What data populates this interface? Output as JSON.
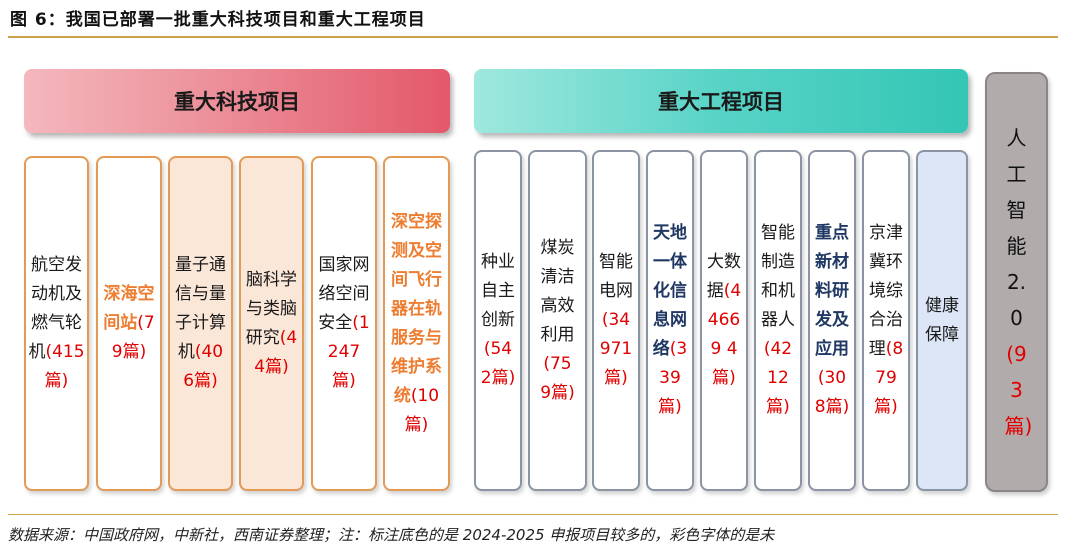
{
  "figure": {
    "title": "图 6：我国已部署一批重大科技项目和重大工程项目",
    "source": "数据来源：中国政府网，中新社，西南证券整理；注：标注底色的是 2024-2025 申报项目较多的，彩色字体的是未"
  },
  "science": {
    "header": "重大科技项目",
    "cards": [
      {
        "name": "航空发动机及燃气轮机",
        "count": "(415篇)"
      },
      {
        "name": "深海空间站",
        "count": "(79篇)"
      },
      {
        "name": "量子通信与量子计算机",
        "count": "(406篇)"
      },
      {
        "name": "脑科学与类脑研究",
        "count": "(44篇)"
      },
      {
        "name": "国家网络空间安全",
        "count": "(1247篇)"
      },
      {
        "name": "深空探测及空间飞行器在轨服务与维护系统",
        "count": "(10篇)"
      }
    ]
  },
  "engineering": {
    "header": "重大工程项目",
    "cards": [
      {
        "name": "种业自主创新",
        "count": "(542篇)"
      },
      {
        "name": "煤炭清洁高效利用",
        "count": "(759篇)"
      },
      {
        "name": "智能电网",
        "count": "(34971篇)"
      },
      {
        "name": "天地一体化信息网络",
        "count": "(339篇)"
      },
      {
        "name": "大数据",
        "count": "(44669 4篇)"
      },
      {
        "name": "智能制造和机器人",
        "count": "(4212篇)"
      },
      {
        "name": "重点新材料研发及应用",
        "count": "(308篇)"
      },
      {
        "name": "京津冀环境综合治理",
        "count": "(879篇)"
      },
      {
        "name": "健康保障",
        "count": ""
      }
    ]
  },
  "ai": {
    "name": "人工智能2.0",
    "count": "(93篇)"
  },
  "colors": {
    "orange_text": "#ed7d31",
    "navy_text": "#203864",
    "count_red": "#e00000",
    "science_header": "#e3586a",
    "engineering_header": "#34c6b5",
    "highlight_fill": "#fbe7d8",
    "blue_fill": "#dde6f6",
    "ai_fill": "#b1abab"
  }
}
